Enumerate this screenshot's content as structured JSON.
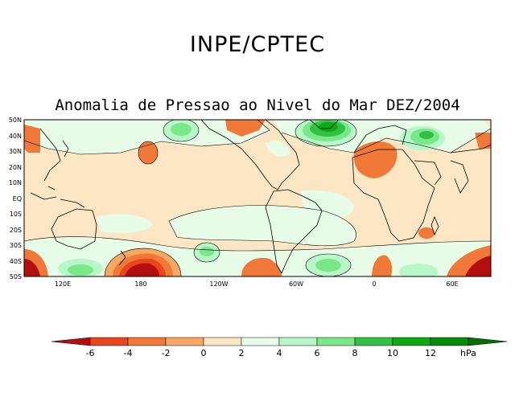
{
  "header": {
    "org": "INPE/CPTEC",
    "title": "Anomalia de Pressao ao Nivel do Mar DEZ/2004"
  },
  "map": {
    "lat_labels": [
      "50N",
      "40N",
      "30N",
      "20N",
      "10N",
      "EQ",
      "10S",
      "20S",
      "30S",
      "40S",
      "50S"
    ],
    "lon_labels": [
      "120E",
      "180",
      "120W",
      "60W",
      "0",
      "60E"
    ]
  },
  "colorbar": {
    "labels": [
      "-6",
      "-4",
      "-2",
      "0",
      "2",
      "4",
      "6",
      "8",
      "10",
      "12"
    ],
    "unit": "hPa",
    "colors": [
      "#b40f0f",
      "#e8461b",
      "#f07838",
      "#f8a860",
      "#fde6c4",
      "#e8fde8",
      "#b8f8c8",
      "#78e888",
      "#34c044",
      "#10a814",
      "#0a8a0a",
      "#076e07"
    ]
  }
}
